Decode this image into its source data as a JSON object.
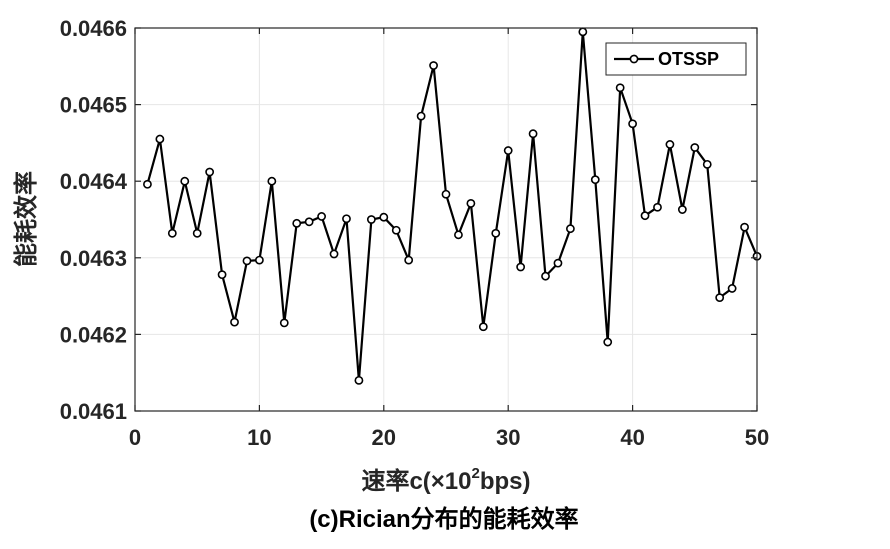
{
  "chart_data": {
    "type": "line",
    "xlabel_prefix": "速率c(×10",
    "xlabel_sup": "2",
    "xlabel_suffix": "bps)",
    "ylabel": "能耗效率",
    "caption": "(c)Rician分布的能耗效率",
    "xlim": [
      0,
      50
    ],
    "ylim": [
      0.0461,
      0.0466
    ],
    "xticks": [
      0,
      10,
      20,
      30,
      40,
      50
    ],
    "xtick_labels": [
      "0",
      "10",
      "20",
      "30",
      "40",
      "50"
    ],
    "yticks": [
      0.0461,
      0.0462,
      0.0463,
      0.0464,
      0.0465,
      0.0466
    ],
    "ytick_labels": [
      "0.0461",
      "0.0462",
      "0.0463",
      "0.0464",
      "0.0465",
      "0.0466"
    ],
    "grid": true,
    "legend_position": "top-right",
    "colors": {
      "series": "#000000",
      "grid": "#e6e6e6",
      "axis": "#262626"
    },
    "series": [
      {
        "name": "OTSSP",
        "marker": "circle",
        "x": [
          1,
          2,
          3,
          4,
          5,
          6,
          7,
          8,
          9,
          10,
          11,
          12,
          13,
          14,
          15,
          16,
          17,
          18,
          19,
          20,
          21,
          22,
          23,
          24,
          25,
          26,
          27,
          28,
          29,
          30,
          31,
          32,
          33,
          34,
          35,
          36,
          37,
          38,
          39,
          40,
          41,
          42,
          43,
          44,
          45,
          46,
          47,
          48,
          49,
          50
        ],
        "y": [
          0.046396,
          0.046455,
          0.046332,
          0.0464,
          0.046332,
          0.046412,
          0.046278,
          0.046216,
          0.046296,
          0.046297,
          0.0464,
          0.046215,
          0.046345,
          0.046347,
          0.046354,
          0.046305,
          0.046351,
          0.04614,
          0.04635,
          0.046353,
          0.046336,
          0.046297,
          0.046485,
          0.046551,
          0.046383,
          0.04633,
          0.046371,
          0.04621,
          0.046332,
          0.04644,
          0.046288,
          0.046462,
          0.046276,
          0.046293,
          0.046338,
          0.046595,
          0.046402,
          0.04619,
          0.046522,
          0.046475,
          0.046355,
          0.046366,
          0.046448,
          0.046363,
          0.046444,
          0.046422,
          0.046248,
          0.04626,
          0.04634,
          0.046302
        ]
      }
    ]
  }
}
